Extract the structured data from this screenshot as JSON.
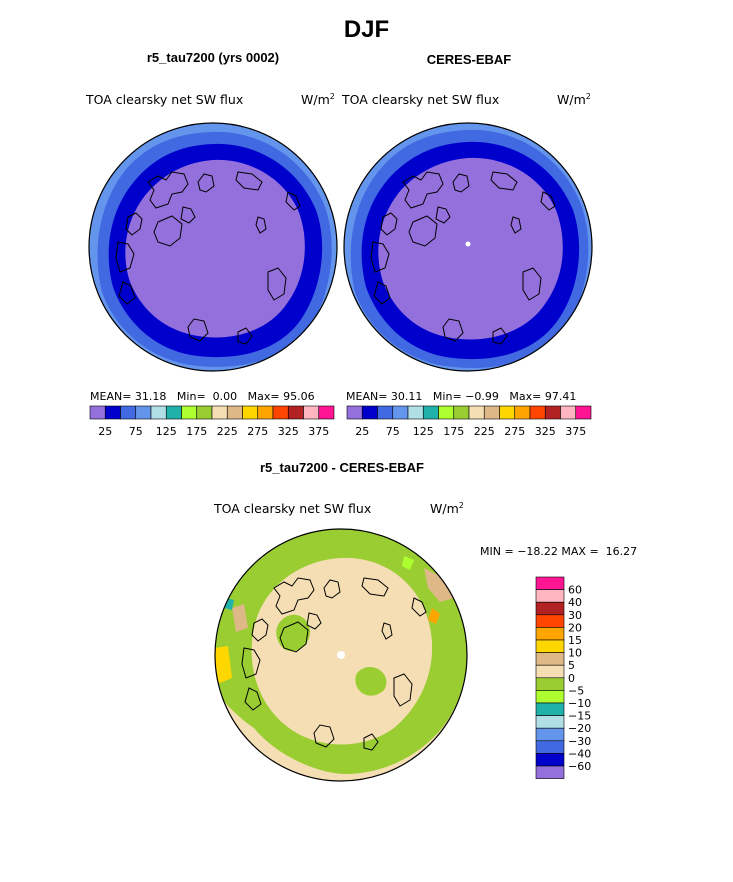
{
  "figure": {
    "season": "DJF",
    "left_title": "r5_tau7200 (yrs 0002)",
    "right_title": "CERES-EBAF",
    "diff_title": "r5_tau7200 - CERES-EBAF"
  },
  "panels": {
    "left": {
      "variable": "TOA clearsky net SW flux",
      "units": "W/m",
      "units_sup": "2",
      "mean_label": "MEAN=",
      "mean": "31.18",
      "min_label": "Min=",
      "min": "0.00",
      "max_label": "Max=",
      "max": "95.06"
    },
    "right": {
      "variable": "TOA clearsky net SW flux",
      "units": "W/m",
      "units_sup": "2",
      "mean_label": "MEAN=",
      "mean": "30.11",
      "min_label": "Min=",
      "min": "−0.99",
      "max_label": "Max=",
      "max": "97.41"
    },
    "diff": {
      "variable": "TOA clearsky net SW flux",
      "units": "W/m",
      "units_sup": "2",
      "min_label": "MIN =",
      "min": "−18.22",
      "max_label": "MAX =",
      "max": "16.27"
    }
  },
  "chart_data": [
    {
      "type": "heatmap",
      "title": "r5_tau7200 (yrs 0002)",
      "projection": "north polar stereographic",
      "variable": "TOA clearsky net SW flux",
      "units": "W/m2",
      "mean": 31.18,
      "min": 0.0,
      "max": 95.06,
      "colorbar": {
        "ticks": [
          "25",
          "75",
          "125",
          "175",
          "225",
          "275",
          "325",
          "375"
        ],
        "colors": [
          "#9370db",
          "#0000cd",
          "#4169e1",
          "#6495ed",
          "#b0e0e6",
          "#20b2aa",
          "#adff2f",
          "#9acd32",
          "#f5deb3",
          "#deb887",
          "#ffd700",
          "#ffa500",
          "#ff4500",
          "#b22222",
          "#ffb6c1",
          "#ff1493"
        ]
      }
    },
    {
      "type": "heatmap",
      "title": "CERES-EBAF",
      "projection": "north polar stereographic",
      "variable": "TOA clearsky net SW flux",
      "units": "W/m2",
      "mean": 30.11,
      "min": -0.99,
      "max": 97.41,
      "colorbar": {
        "ticks": [
          "25",
          "75",
          "125",
          "175",
          "225",
          "275",
          "325",
          "375"
        ],
        "colors": [
          "#9370db",
          "#0000cd",
          "#4169e1",
          "#6495ed",
          "#b0e0e6",
          "#20b2aa",
          "#adff2f",
          "#9acd32",
          "#f5deb3",
          "#deb887",
          "#ffd700",
          "#ffa500",
          "#ff4500",
          "#b22222",
          "#ffb6c1",
          "#ff1493"
        ]
      }
    },
    {
      "type": "heatmap",
      "title": "r5_tau7200 - CERES-EBAF",
      "projection": "north polar stereographic",
      "variable": "TOA clearsky net SW flux",
      "units": "W/m2",
      "min": -18.22,
      "max": 16.27,
      "colorbar": {
        "levels_top_to_bottom": [
          "60",
          "40",
          "30",
          "20",
          "15",
          "10",
          "5",
          "0",
          "−5",
          "−10",
          "−15",
          "−20",
          "−30",
          "−40",
          "−60"
        ],
        "colors_top_to_bottom": [
          "#ff1493",
          "#ffb6c1",
          "#b22222",
          "#ff4500",
          "#ffa500",
          "#ffd700",
          "#deb887",
          "#f5deb3",
          "#9acd32",
          "#adff2f",
          "#20b2aa",
          "#b0e0e6",
          "#6495ed",
          "#4169e1",
          "#0000cd",
          "#9370db"
        ]
      }
    }
  ]
}
